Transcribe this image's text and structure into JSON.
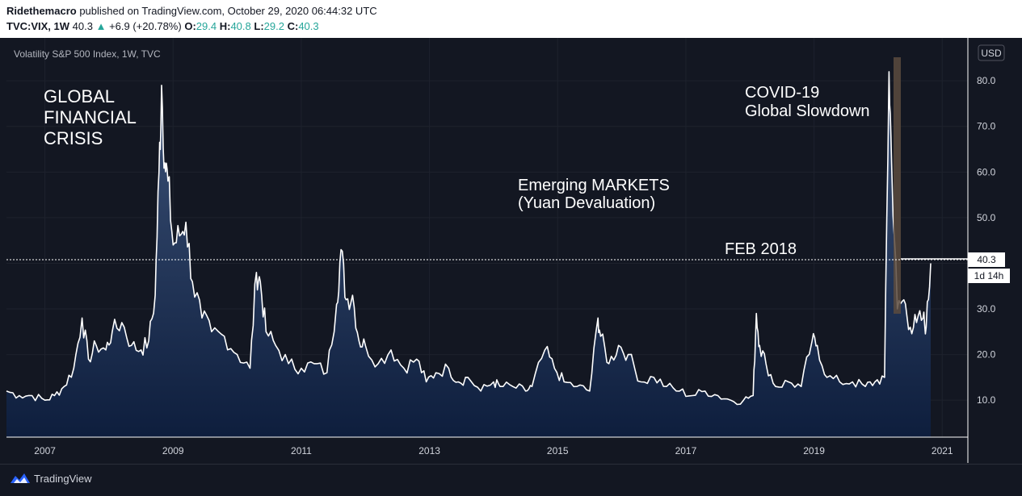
{
  "header": {
    "author": "Ridethemacro",
    "published_text": "published on TradingView.com, October 29, 2020 06:44:32 UTC",
    "symbol": "TVC:VIX, 1W",
    "last": "40.3",
    "change_arrow": "▲",
    "change": "+6.9 (+20.78%)",
    "open_label": "O:",
    "open": "29.4",
    "high_label": "H:",
    "high": "40.8",
    "low_label": "L:",
    "low": "29.2",
    "close_label": "C:",
    "close": "40.3"
  },
  "chart": {
    "legend_title": "Volatility S&P 500 Index, 1W, TVC",
    "currency": "USD",
    "price_label": "40.3",
    "countdown": "1d 14h",
    "annotations": [
      "GLOBAL\nFINANCIAL\nCRISIS",
      "Emerging MARKETS\n(Yuan Devaluation)",
      "FEB 2018",
      "COVID-19\nGlobal Slowdown"
    ]
  },
  "footer": {
    "brand": "TradingView"
  },
  "colors": {
    "background": "#131722",
    "line": "#ffffff",
    "area_top": "#3d5379",
    "area_bottom": "#0e1e3d",
    "up": "#26a69a"
  },
  "chart_data": {
    "type": "area",
    "title": "Volatility S&P 500 Index, 1W, TVC",
    "x": [
      2006.4,
      2006.6,
      2006.8,
      2007.0,
      2007.15,
      2007.3,
      2007.45,
      2007.58,
      2007.68,
      2007.8,
      2007.95,
      2008.05,
      2008.2,
      2008.35,
      2008.5,
      2008.62,
      2008.72,
      2008.78,
      2008.82,
      2008.87,
      2008.92,
      2009.0,
      2009.1,
      2009.2,
      2009.3,
      2009.45,
      2009.6,
      2009.8,
      2010.0,
      2010.2,
      2010.3,
      2010.36,
      2010.45,
      2010.6,
      2010.8,
      2011.0,
      2011.2,
      2011.4,
      2011.55,
      2011.62,
      2011.7,
      2011.8,
      2011.9,
      2012.0,
      2012.2,
      2012.4,
      2012.6,
      2012.8,
      2012.95,
      2013.1,
      2013.3,
      2013.45,
      2013.6,
      2013.8,
      2014.0,
      2014.1,
      2014.3,
      2014.5,
      2014.6,
      2014.8,
      2014.95,
      2015.1,
      2015.3,
      2015.5,
      2015.63,
      2015.67,
      2015.8,
      2015.95,
      2016.1,
      2016.3,
      2016.5,
      2016.7,
      2016.9,
      2017.1,
      2017.3,
      2017.5,
      2017.7,
      2017.9,
      2018.05,
      2018.1,
      2018.15,
      2018.25,
      2018.4,
      2018.6,
      2018.8,
      2018.97,
      2019.05,
      2019.2,
      2019.4,
      2019.6,
      2019.8,
      2019.95,
      2020.1,
      2020.17,
      2020.21,
      2020.3,
      2020.4,
      2020.5,
      2020.6,
      2020.7,
      2020.75,
      2020.82
    ],
    "values": [
      12,
      11,
      11,
      10,
      11,
      13,
      17,
      28,
      19,
      22,
      21,
      25,
      27,
      22,
      21,
      23,
      33,
      60,
      79,
      62,
      58,
      44,
      46,
      49,
      36,
      28,
      25,
      24,
      20,
      17,
      38,
      36,
      25,
      22,
      18,
      17,
      18,
      16,
      31,
      43,
      32,
      33,
      23,
      22,
      18,
      21,
      17,
      19,
      14,
      16,
      17,
      14,
      15,
      12,
      14,
      13,
      13,
      12,
      13,
      21,
      17,
      14,
      13,
      12,
      28,
      24,
      18,
      22,
      20,
      14,
      15,
      13,
      12,
      11,
      12,
      11,
      10,
      10,
      11,
      29,
      22,
      18,
      13,
      14,
      13,
      23,
      22,
      15,
      14,
      14,
      13,
      14,
      15,
      82,
      62,
      30,
      32,
      26,
      27,
      28,
      26,
      40
    ],
    "xlim": [
      2006.4,
      2021.4
    ],
    "ylim": [
      1.9,
      89.4
    ],
    "yticks": [
      10.0,
      20.0,
      30.0,
      40.0,
      50.0,
      60.0,
      70.0,
      80.0
    ],
    "ytick_labels": [
      "10.0",
      "20.0",
      "30.0",
      "40.0",
      "50.0",
      "60.0",
      "70.0",
      "80.0"
    ],
    "xticks": [
      2007,
      2009,
      2011,
      2013,
      2015,
      2017,
      2019,
      2021
    ],
    "xtick_labels": [
      "2007",
      "2009",
      "2011",
      "2013",
      "2015",
      "2017",
      "2019",
      "2021"
    ],
    "last_value": 40.3,
    "grid": true,
    "y_axis_side": "right"
  }
}
